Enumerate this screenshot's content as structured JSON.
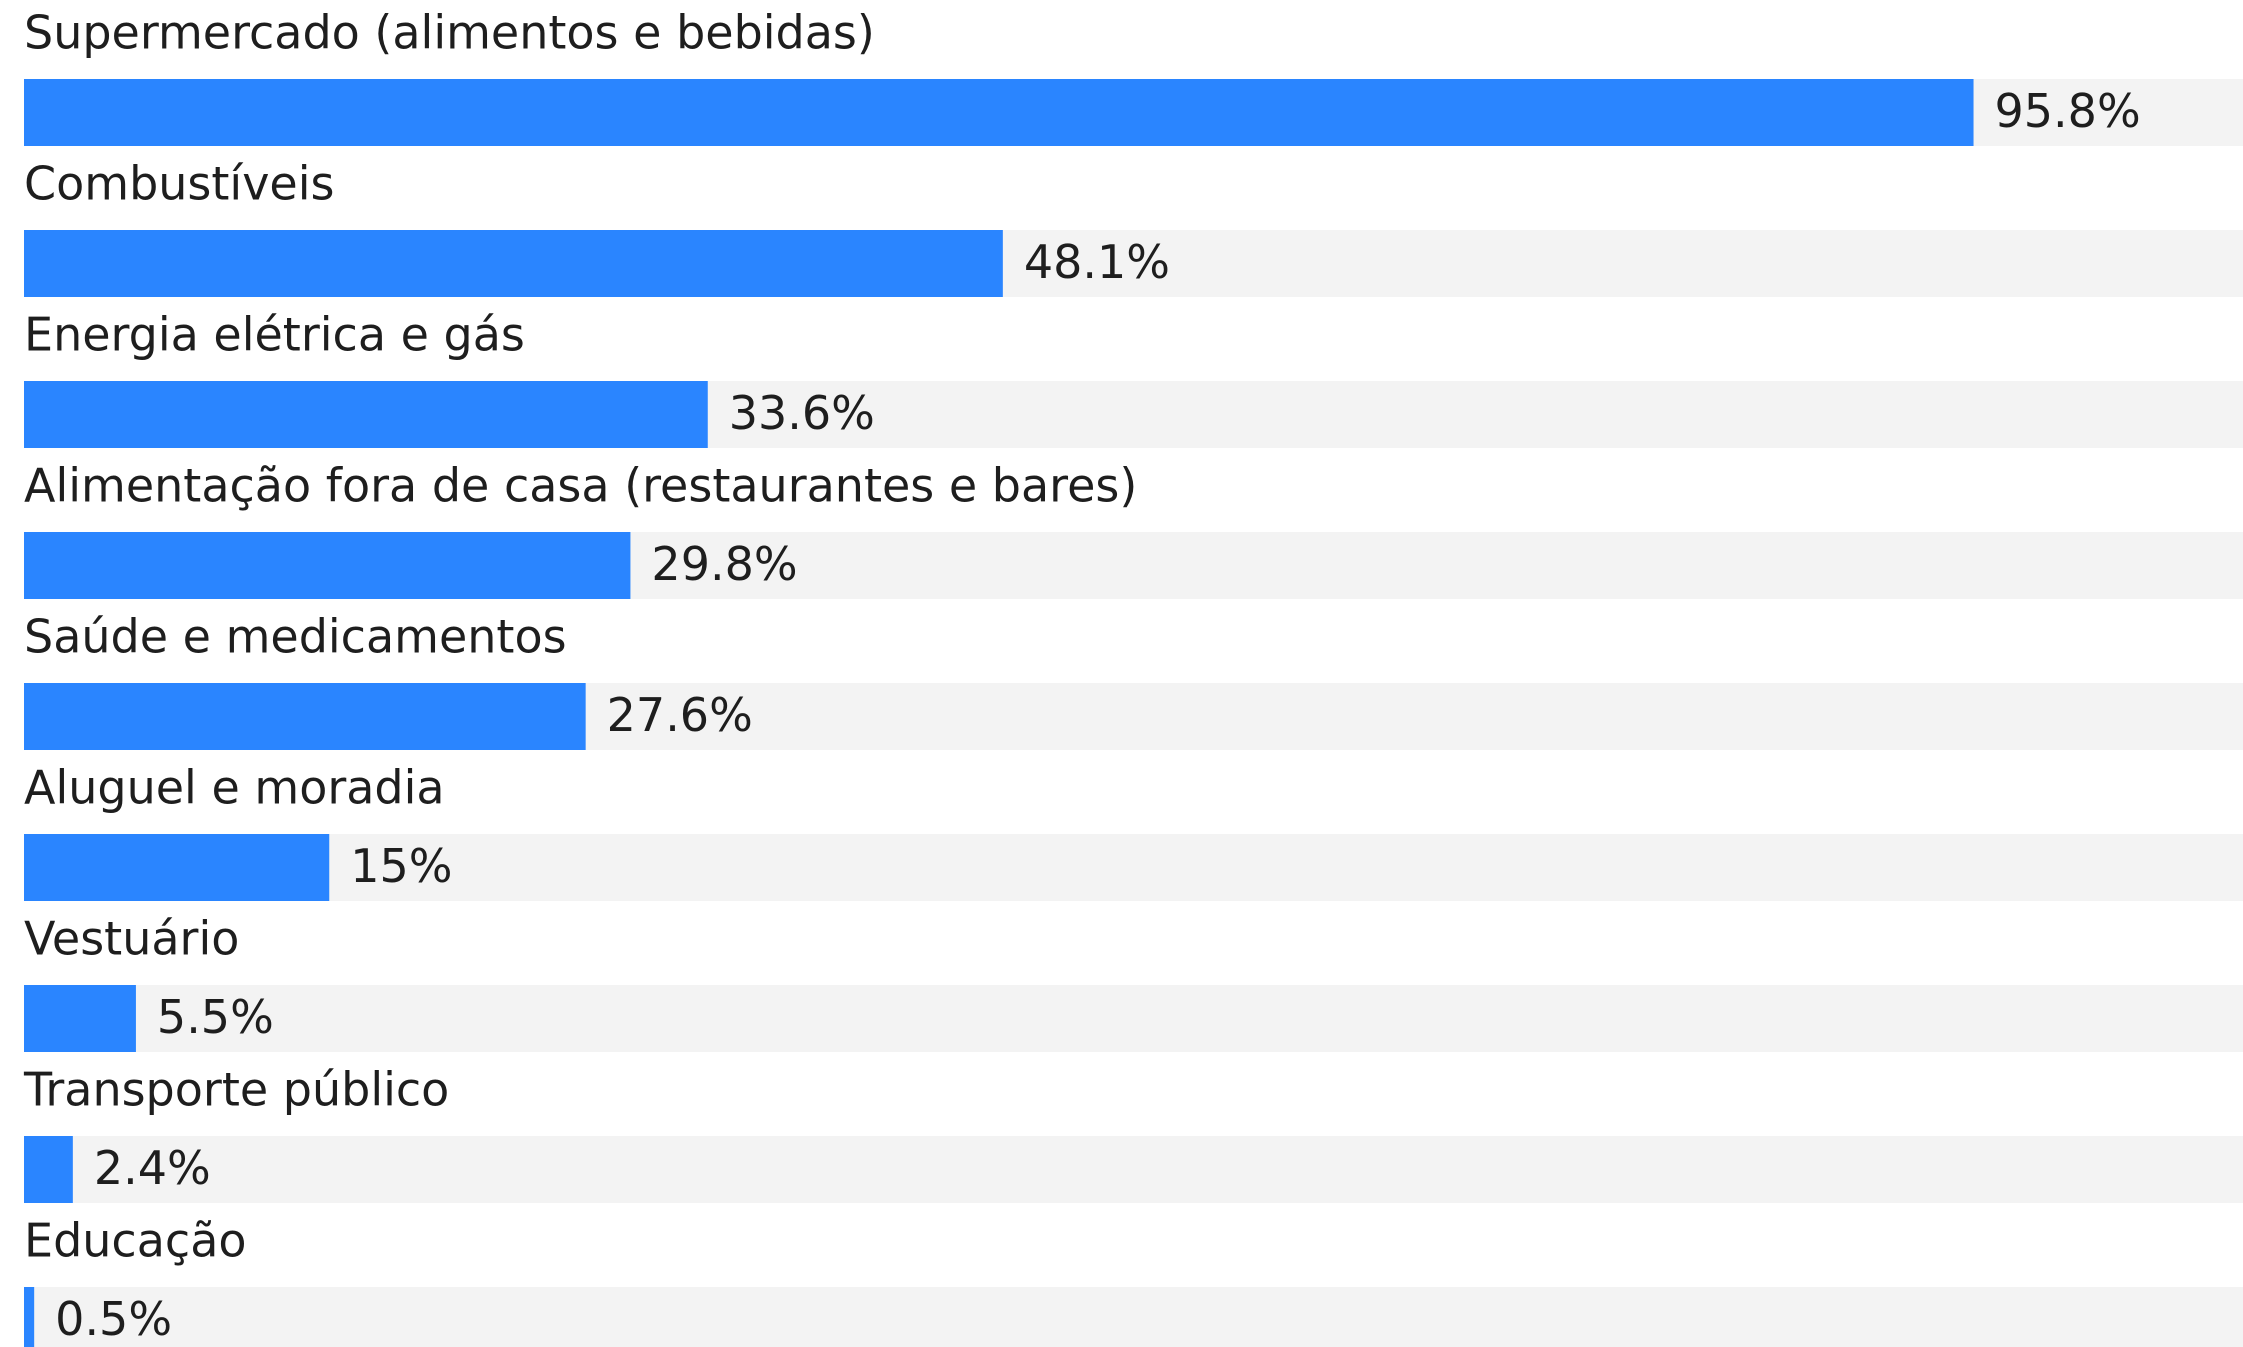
{
  "chart_data": {
    "type": "hbar",
    "categories": [
      "Supermercado (alimentos e bebidas)",
      "Combustíveis",
      "Energia elétrica e gás",
      "Alimentação fora de casa (restaurantes e bares)",
      "Saúde e medicamentos",
      "Aluguel e moradia",
      "Vestuário",
      "Transporte público",
      "Educação"
    ],
    "values": [
      95.8,
      48.1,
      33.6,
      29.8,
      27.6,
      15,
      5.5,
      2.4,
      0.5
    ],
    "value_labels": [
      "95.8%",
      "48.1%",
      "33.6%",
      "29.8%",
      "27.6%",
      "15%",
      "5.5%",
      "2.4%",
      "0.5%"
    ],
    "color": "#2a85ff",
    "xlim": [
      0,
      100
    ]
  }
}
